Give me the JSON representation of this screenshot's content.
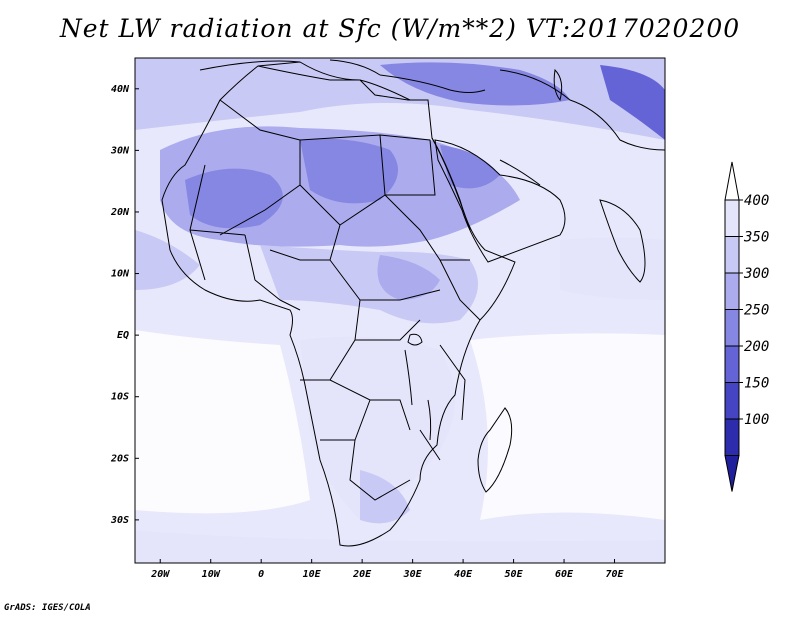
{
  "title": "Net LW radiation at Sfc (W/m**2) VT:2017020200",
  "credit": "GrADS: IGES/COLA",
  "map": {
    "lon_min": -25,
    "lon_max": 80,
    "lat_min": -37,
    "lat_max": 45,
    "x_ticks": [
      {
        "lon": -20,
        "label": "20W"
      },
      {
        "lon": -10,
        "label": "10W"
      },
      {
        "lon": 0,
        "label": "0"
      },
      {
        "lon": 10,
        "label": "10E"
      },
      {
        "lon": 20,
        "label": "20E"
      },
      {
        "lon": 30,
        "label": "30E"
      },
      {
        "lon": 40,
        "label": "40E"
      },
      {
        "lon": 50,
        "label": "50E"
      },
      {
        "lon": 60,
        "label": "60E"
      },
      {
        "lon": 70,
        "label": "70E"
      }
    ],
    "y_ticks": [
      {
        "lat": 40,
        "label": "40N"
      },
      {
        "lat": 30,
        "label": "30N"
      },
      {
        "lat": 20,
        "label": "20N"
      },
      {
        "lat": 10,
        "label": "10N"
      },
      {
        "lat": 0,
        "label": "EQ"
      },
      {
        "lat": -10,
        "label": "10S"
      },
      {
        "lat": -20,
        "label": "20S"
      },
      {
        "lat": -30,
        "label": "30S"
      }
    ]
  },
  "colorbar": {
    "levels": [
      "400",
      "350",
      "300",
      "250",
      "200",
      "150",
      "100"
    ],
    "colors": [
      "#ffffff",
      "#e4e4fb",
      "#c9c9f5",
      "#ababee",
      "#8686e3",
      "#6464d6",
      "#4545c4",
      "#2c2cac",
      "#20209c"
    ]
  },
  "colors": {
    "water_bg": "#e8e8fc",
    "outline": "#000000"
  }
}
